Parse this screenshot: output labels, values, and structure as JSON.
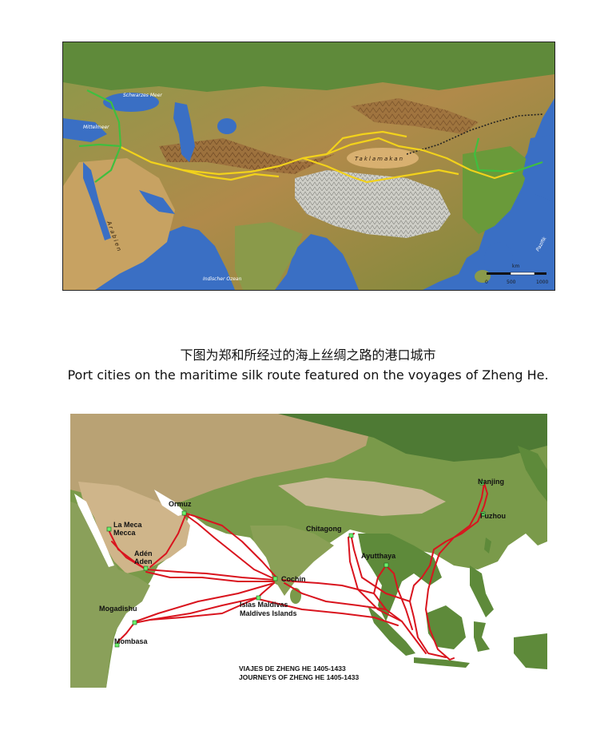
{
  "caption": {
    "chinese": "下图为郑和所经过的海上丝绸之路的港口城市",
    "english": "Port cities on the maritime silk route featured on the voyages of Zheng He."
  },
  "colors": {
    "route_yellow": "#f2d21b",
    "route_green": "#3fbf3f",
    "voyage_red": "#d9141e",
    "port_marker": "#6cf06c",
    "sea_blue": "#3a6fc4"
  },
  "silk_road_map": {
    "scale_unit": "km",
    "scale_ticks": [
      "0",
      "500",
      "1000"
    ],
    "labels": {
      "indian_ocean": "Indischer Ozean",
      "pacific": "Pazifik",
      "arabian": "Arabien",
      "taklamakan": "Taklamakan",
      "mediterranean": "Mittelmeer",
      "black_sea": "Schwarzes Meer"
    }
  },
  "voyages_map": {
    "legend_line1": "VIAJES DE ZHENG HE 1405-1433",
    "legend_line2": "JOURNEYS OF ZHENG HE 1405-1433",
    "ports": [
      {
        "id": "nanjing",
        "label": "Nanjing"
      },
      {
        "id": "fuzhou",
        "label": "Fuzhou"
      },
      {
        "id": "ormuz",
        "label": "Ormuz"
      },
      {
        "id": "la-meca",
        "label": "La Meca"
      },
      {
        "id": "mecca",
        "label": "Mecca"
      },
      {
        "id": "aden-es",
        "label": "Adén"
      },
      {
        "id": "aden",
        "label": "Aden"
      },
      {
        "id": "chitagong",
        "label": "Chitagong"
      },
      {
        "id": "ayutthaya",
        "label": "Ayutthaya"
      },
      {
        "id": "cochin",
        "label": "Cochin"
      },
      {
        "id": "islas-maldivas",
        "label": "Islas Maldivas"
      },
      {
        "id": "maldives-islands",
        "label": "Maldives Islands"
      },
      {
        "id": "mogadishu",
        "label": "Mogadishu"
      },
      {
        "id": "mombasa",
        "label": "Mombasa"
      }
    ]
  }
}
